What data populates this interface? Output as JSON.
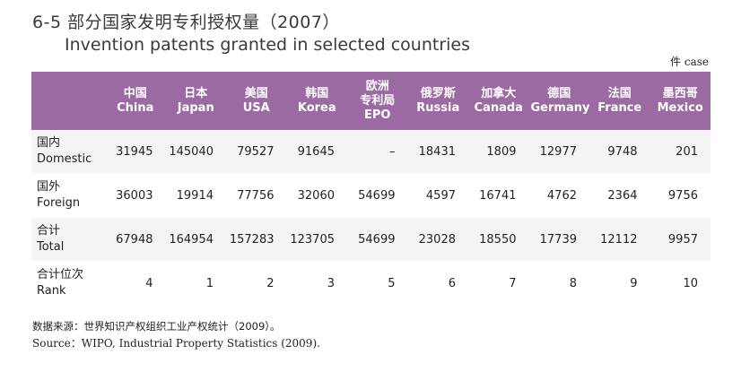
{
  "title": {
    "cn": "6-5 部分国家发明专利授权量（2007）",
    "en": "Invention patents granted in selected countries"
  },
  "unit": "件 case",
  "table": {
    "columns": [
      {
        "cn": "中国",
        "en": "China"
      },
      {
        "cn": "日本",
        "en": "Japan"
      },
      {
        "cn": "美国",
        "en": "USA"
      },
      {
        "cn": "韩国",
        "en": "Korea"
      },
      {
        "cn": "欧洲专利局",
        "cn1": "欧洲",
        "cn2": "专利局",
        "en": "EPO"
      },
      {
        "cn": "俄罗斯",
        "en": "Russia"
      },
      {
        "cn": "加拿大",
        "en": "Canada"
      },
      {
        "cn": "德国",
        "en": "Germany"
      },
      {
        "cn": "法国",
        "en": "France"
      },
      {
        "cn": "墨西哥",
        "en": "Mexico"
      }
    ],
    "rows": [
      {
        "cn": "国内",
        "en": "Domestic",
        "values": [
          "31945",
          "145040",
          "79527",
          "91645",
          "–",
          "18431",
          "1809",
          "12977",
          "9748",
          "201"
        ]
      },
      {
        "cn": "国外",
        "en": "Foreign",
        "values": [
          "36003",
          "19914",
          "77756",
          "32060",
          "54699",
          "4597",
          "16741",
          "4762",
          "2364",
          "9756"
        ]
      },
      {
        "cn": "合计",
        "en": "Total",
        "values": [
          "67948",
          "164954",
          "157283",
          "123705",
          "54699",
          "23028",
          "18550",
          "17739",
          "12112",
          "9957"
        ]
      },
      {
        "cn": "合计位次",
        "en": "Rank",
        "values": [
          "4",
          "1",
          "2",
          "3",
          "5",
          "6",
          "7",
          "8",
          "9",
          "10"
        ]
      }
    ]
  },
  "source": {
    "cn": "数据来源：世界知识产权组织工业产权统计（2009）。",
    "en": "Source：WIPO, Industrial Property Statistics (2009)."
  },
  "colors": {
    "header_bg": "#9c6aa3",
    "header_text": "#ffffff",
    "row_alt": "#f4f4f4"
  }
}
